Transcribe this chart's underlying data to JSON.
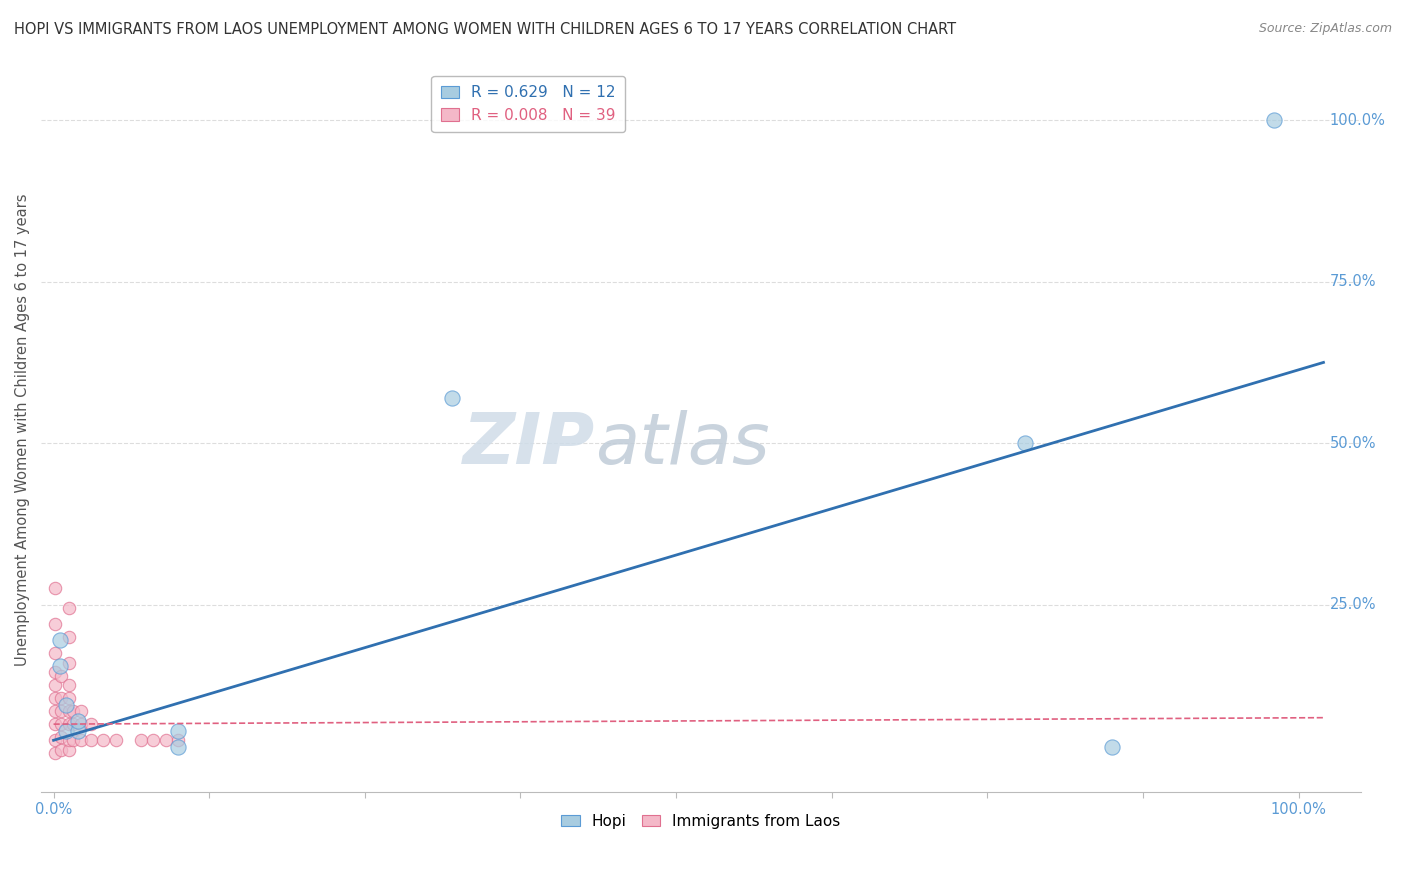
{
  "title": "HOPI VS IMMIGRANTS FROM LAOS UNEMPLOYMENT AMONG WOMEN WITH CHILDREN AGES 6 TO 17 YEARS CORRELATION CHART",
  "source": "Source: ZipAtlas.com",
  "ylabel": "Unemployment Among Women with Children Ages 6 to 17 years",
  "ytick_labels": [
    "25.0%",
    "50.0%",
    "75.0%",
    "100.0%"
  ],
  "ytick_values": [
    0.25,
    0.5,
    0.75,
    1.0
  ],
  "hopi_color": "#a8cce0",
  "laos_color": "#f4b8c8",
  "hopi_edge_color": "#5b9bd5",
  "laos_edge_color": "#e07090",
  "hopi_line_color": "#3070b0",
  "laos_line_color": "#e06080",
  "hopi_points": [
    [
      0.005,
      0.155
    ],
    [
      0.005,
      0.195
    ],
    [
      0.01,
      0.095
    ],
    [
      0.01,
      0.055
    ],
    [
      0.02,
      0.055
    ],
    [
      0.02,
      0.07
    ],
    [
      0.1,
      0.055
    ],
    [
      0.1,
      0.03
    ],
    [
      0.32,
      0.57
    ],
    [
      0.78,
      0.5
    ],
    [
      0.85,
      0.03
    ],
    [
      0.98,
      1.0
    ]
  ],
  "laos_points": [
    [
      0.001,
      0.02
    ],
    [
      0.001,
      0.04
    ],
    [
      0.001,
      0.065
    ],
    [
      0.001,
      0.085
    ],
    [
      0.001,
      0.105
    ],
    [
      0.001,
      0.125
    ],
    [
      0.001,
      0.145
    ],
    [
      0.001,
      0.175
    ],
    [
      0.001,
      0.22
    ],
    [
      0.001,
      0.275
    ],
    [
      0.006,
      0.025
    ],
    [
      0.006,
      0.045
    ],
    [
      0.006,
      0.065
    ],
    [
      0.006,
      0.085
    ],
    [
      0.006,
      0.105
    ],
    [
      0.006,
      0.14
    ],
    [
      0.012,
      0.025
    ],
    [
      0.012,
      0.04
    ],
    [
      0.012,
      0.065
    ],
    [
      0.012,
      0.085
    ],
    [
      0.012,
      0.105
    ],
    [
      0.012,
      0.125
    ],
    [
      0.012,
      0.16
    ],
    [
      0.012,
      0.2
    ],
    [
      0.012,
      0.245
    ],
    [
      0.016,
      0.04
    ],
    [
      0.016,
      0.065
    ],
    [
      0.016,
      0.085
    ],
    [
      0.022,
      0.04
    ],
    [
      0.022,
      0.065
    ],
    [
      0.022,
      0.085
    ],
    [
      0.03,
      0.04
    ],
    [
      0.03,
      0.065
    ],
    [
      0.04,
      0.04
    ],
    [
      0.05,
      0.04
    ],
    [
      0.07,
      0.04
    ],
    [
      0.08,
      0.04
    ],
    [
      0.09,
      0.04
    ],
    [
      0.1,
      0.04
    ]
  ],
  "hopi_bubble_size": 120,
  "laos_bubble_size": 80,
  "hopi_r": 0.629,
  "hopi_n": 12,
  "laos_r": 0.008,
  "laos_n": 39,
  "hopi_line_x": [
    0.0,
    1.02
  ],
  "hopi_line_y": [
    0.04,
    0.625
  ],
  "laos_line_x": [
    0.0,
    1.02
  ],
  "laos_line_y": [
    0.065,
    0.075
  ],
  "xlim": [
    -0.01,
    1.05
  ],
  "ylim": [
    -0.04,
    1.08
  ],
  "grid_color": "#dddddd",
  "watermark_zip": "ZIP",
  "watermark_atlas": "atlas",
  "watermark_color_zip": "#d0dce8",
  "watermark_color_atlas": "#c0ccd8"
}
